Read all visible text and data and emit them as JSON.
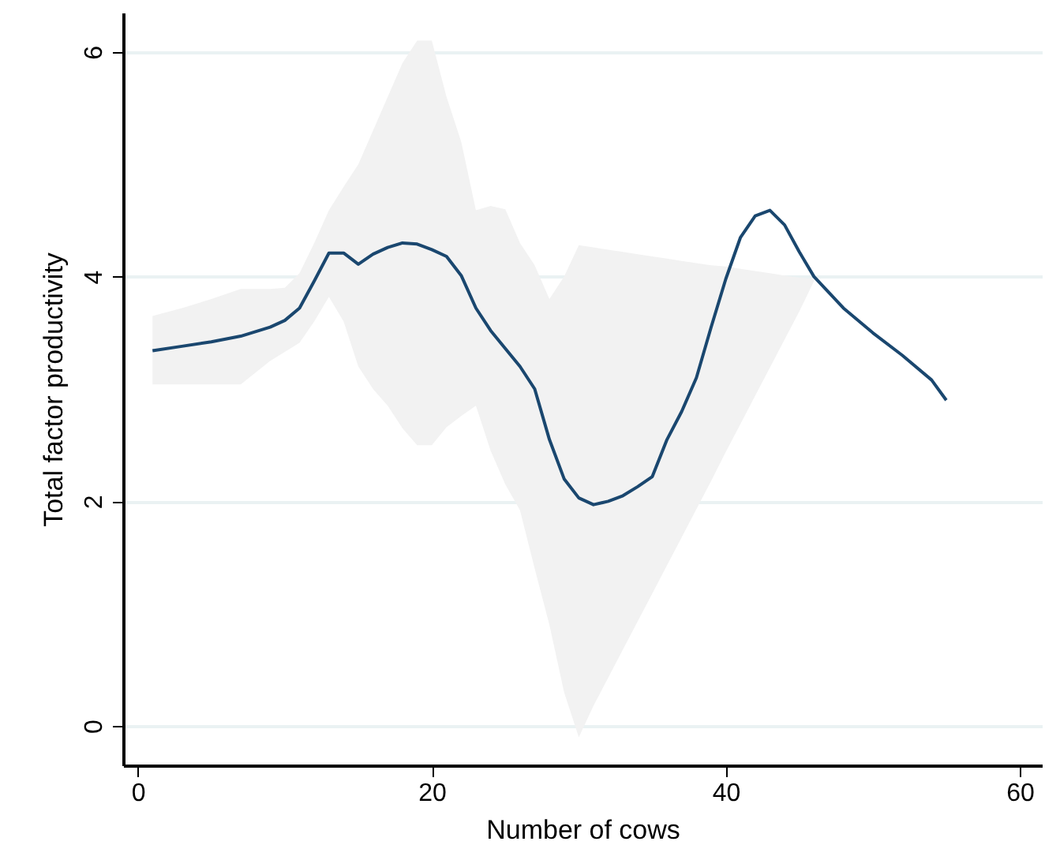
{
  "chart_data": {
    "type": "line",
    "xlabel": "Number of cows",
    "ylabel": "Total factor productivity",
    "xlim": [
      -1,
      61.5
    ],
    "ylim": [
      -0.35,
      6.35
    ],
    "xticks": [
      0,
      20,
      40,
      60
    ],
    "yticks": [
      0,
      2,
      4,
      6
    ],
    "grid": "y",
    "line_style": "solid",
    "marker": "none",
    "x": [
      1,
      3,
      5,
      7,
      9,
      10,
      11,
      12,
      13,
      14,
      15,
      16,
      17,
      18,
      19,
      20,
      21,
      22,
      23,
      24,
      25,
      26,
      27,
      28,
      29,
      30,
      31,
      32,
      33,
      34,
      35,
      36,
      37,
      38,
      39,
      40,
      41,
      42,
      43,
      44,
      45,
      46,
      48,
      50,
      52,
      54,
      55
    ],
    "series": [
      {
        "color": "#1a476f",
        "values": [
          3.34,
          3.38,
          3.42,
          3.47,
          3.55,
          3.61,
          3.72,
          3.96,
          4.21,
          4.21,
          4.11,
          4.2,
          4.26,
          4.3,
          4.29,
          4.24,
          4.18,
          4.01,
          3.72,
          3.52,
          3.36,
          3.2,
          3.0,
          2.55,
          2.2,
          2.03,
          1.97,
          2.0,
          2.05,
          2.13,
          2.22,
          2.55,
          2.8,
          3.1,
          3.55,
          3.98,
          4.35,
          4.54,
          4.59,
          4.46,
          4.22,
          4.0,
          3.72,
          3.5,
          3.3,
          3.08,
          2.9
        ],
        "lower": [
          3.04,
          3.04,
          3.04,
          3.04,
          3.25,
          3.33,
          3.41,
          3.6,
          3.82,
          3.6,
          3.2,
          3.0,
          2.85,
          2.65,
          2.5,
          2.5,
          2.66,
          2.76,
          2.85,
          2.45,
          2.15,
          1.92,
          1.4,
          0.9,
          0.3,
          -0.1,
          0.18,
          0.43,
          0.68,
          0.93,
          1.18,
          1.43,
          1.68,
          1.93,
          2.18,
          2.44,
          2.69,
          2.94,
          3.19,
          3.44,
          3.69,
          3.96,
          null,
          null,
          null,
          null,
          null
        ],
        "upper": [
          3.65,
          3.72,
          3.8,
          3.89,
          3.89,
          3.9,
          4.03,
          4.3,
          4.59,
          4.8,
          5.0,
          5.3,
          5.6,
          5.9,
          6.1,
          6.1,
          5.6,
          5.2,
          4.59,
          4.63,
          4.6,
          4.3,
          4.1,
          3.8,
          4.0,
          4.28,
          4.26,
          4.24,
          4.22,
          4.2,
          4.18,
          4.16,
          4.14,
          4.12,
          4.1,
          4.09,
          4.07,
          4.05,
          4.03,
          4.01,
          3.99,
          3.98,
          null,
          null,
          null,
          null,
          null
        ]
      }
    ]
  }
}
